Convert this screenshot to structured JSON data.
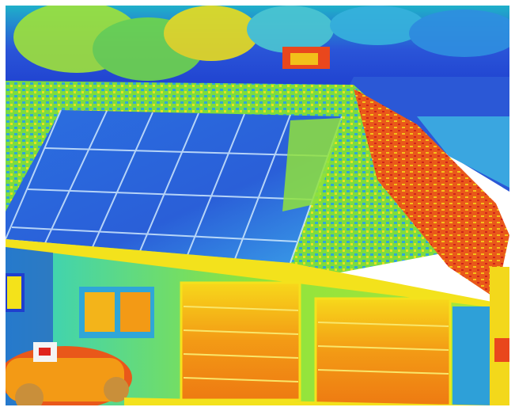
{
  "image": {
    "subject": "thermal-image-of-house-with-solar-panels-and-garage",
    "palette": {
      "cold": "#1a3fd6",
      "cool": "#18a7e8",
      "mid": "#8be33a",
      "warm": "#f2e21a",
      "hot": "#f07a12",
      "hottest": "#e0241c"
    }
  }
}
